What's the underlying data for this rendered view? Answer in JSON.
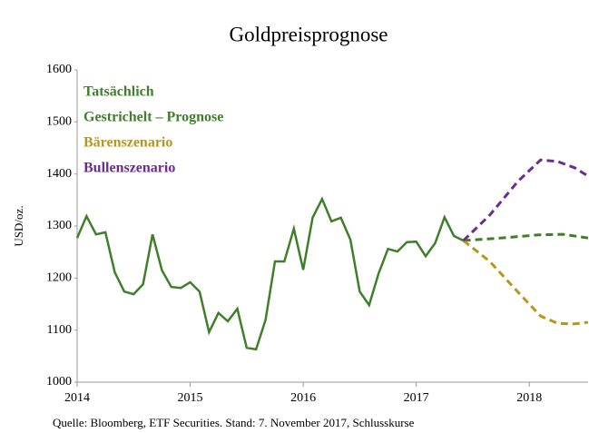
{
  "chart_data": {
    "type": "line",
    "title": "Goldpreisprognose",
    "y_label": "USD/oz.",
    "source": "Quelle: Bloomberg, ETF Securities. Stand: 7. November 2017, Schlusskurse",
    "xlim": [
      2014,
      2018.52
    ],
    "xticks": [
      2014,
      2015,
      2016,
      2017,
      2018
    ],
    "ylim": [
      1000,
      1600
    ],
    "yticks": [
      1000,
      1100,
      1200,
      1300,
      1400,
      1500,
      1600
    ],
    "series": [
      {
        "name": "Tatsächlich",
        "color": "#3f7f2a",
        "dashed": false,
        "x": [
          2014,
          2014.083,
          2014.167,
          2014.25,
          2014.333,
          2014.417,
          2014.5,
          2014.583,
          2014.667,
          2014.75,
          2014.833,
          2014.917,
          2015,
          2015.083,
          2015.167,
          2015.25,
          2015.333,
          2015.417,
          2015.5,
          2015.583,
          2015.667,
          2015.75,
          2015.833,
          2015.917,
          2016,
          2016.083,
          2016.167,
          2016.25,
          2016.333,
          2016.417,
          2016.5,
          2016.583,
          2016.667,
          2016.75,
          2016.833,
          2016.917,
          2017,
          2017.083,
          2017.167,
          2017.25,
          2017.333,
          2017.417
        ],
        "values": [
          1277,
          1319,
          1284,
          1288,
          1211,
          1174,
          1169,
          1188,
          1284,
          1215,
          1183,
          1181,
          1192,
          1174,
          1096,
          1133,
          1117,
          1141,
          1066,
          1063,
          1120,
          1232,
          1232,
          1295,
          1216,
          1316,
          1352,
          1309,
          1316,
          1274,
          1174,
          1148,
          1209,
          1256,
          1251,
          1269,
          1270,
          1242,
          1267,
          1317,
          1281,
          1272
        ]
      },
      {
        "name": "Gestrichelt – Prognose",
        "color": "#3f7f2a",
        "dashed": true,
        "x": [
          2017.417,
          2017.75,
          2018.083,
          2018.3,
          2018.52
        ],
        "values": [
          1272,
          1277,
          1283,
          1284,
          1277
        ]
      },
      {
        "name": "Bärenszenario",
        "color": "#b8961e",
        "dashed": true,
        "x": [
          2017.417,
          2017.65,
          2017.9,
          2018.1,
          2018.25,
          2018.4,
          2018.52
        ],
        "values": [
          1272,
          1232,
          1173,
          1127,
          1113,
          1112,
          1115
        ]
      },
      {
        "name": "Bullenszenario",
        "color": "#6a2d8c",
        "dashed": true,
        "x": [
          2017.417,
          2017.65,
          2017.9,
          2018.1,
          2018.25,
          2018.4,
          2018.52
        ],
        "values": [
          1272,
          1321,
          1386,
          1427,
          1424,
          1412,
          1396
        ]
      }
    ]
  }
}
